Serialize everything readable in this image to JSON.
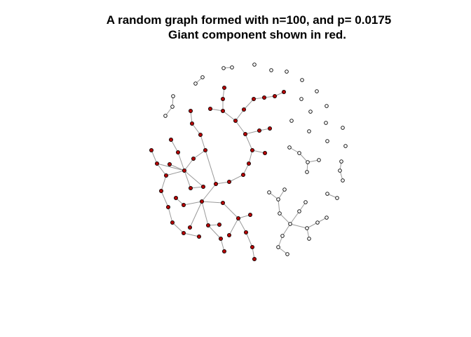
{
  "title": {
    "line1": "A random graph formed with n=100, and p= 0.0175",
    "line2": "Giant component shown in red."
  },
  "colors": {
    "giant_component": "#b30000",
    "other_nodes": "#ffffff",
    "node_outline": "#000000",
    "edges": "#9a9a9a"
  },
  "graph": {
    "n": 100,
    "p": 0.0175
  }
}
